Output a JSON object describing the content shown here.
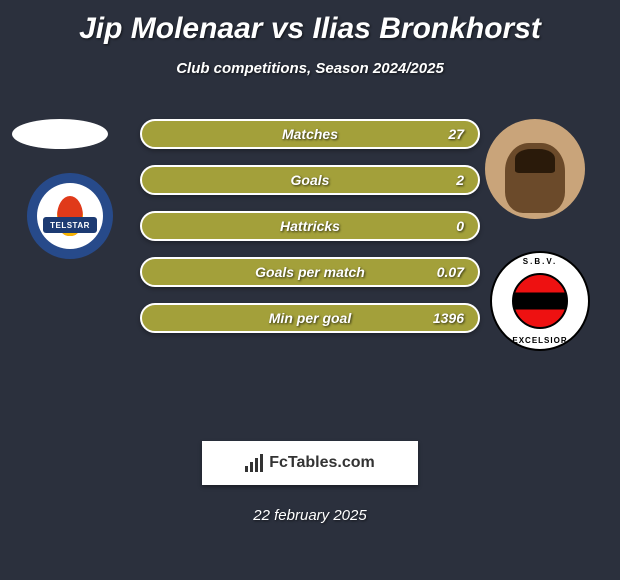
{
  "title": "Jip Molenaar vs Ilias Bronkhorst",
  "subtitle": "Club competitions, Season 2024/2025",
  "date": "22 february 2025",
  "brand": "FcTables.com",
  "colors": {
    "background": "#2b303d",
    "bar_fill": "#a3a03a",
    "bar_border": "#ffffff",
    "text": "#ffffff"
  },
  "left_club": {
    "name": "TELSTAR"
  },
  "right_club": {
    "top": "S.B.V.",
    "bottom": "EXCELSIOR"
  },
  "stats": [
    {
      "label": "Matches",
      "value": "27"
    },
    {
      "label": "Goals",
      "value": "2"
    },
    {
      "label": "Hattricks",
      "value": "0"
    },
    {
      "label": "Goals per match",
      "value": "0.07"
    },
    {
      "label": "Min per goal",
      "value": "1396"
    }
  ]
}
